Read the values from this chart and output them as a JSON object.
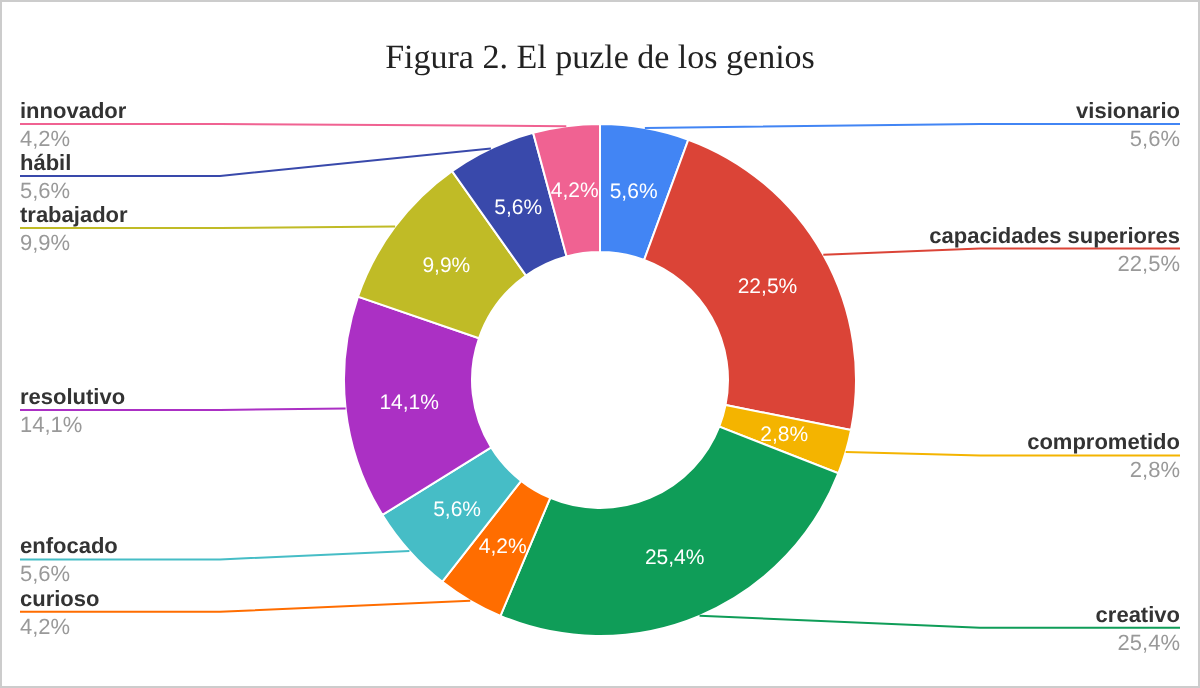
{
  "chart_data": {
    "type": "donut",
    "title": "Figura 2. El puzle de los genios",
    "categories": [
      "visionario",
      "capacidades superiores",
      "comprometido",
      "creativo",
      "curioso",
      "enfocado",
      "resolutivo",
      "trabajador",
      "hábil",
      "innovador"
    ],
    "values": [
      5.6,
      22.5,
      2.8,
      25.4,
      4.2,
      5.6,
      14.1,
      9.9,
      5.6,
      4.2
    ],
    "value_labels": [
      "5,6%",
      "22,5%",
      "2,8%",
      "25,4%",
      "4,2%",
      "5,6%",
      "14,1%",
      "9,9%",
      "5,6%",
      "4,2%"
    ],
    "colors": [
      "#4285f4",
      "#db4437",
      "#f4b400",
      "#0f9d58",
      "#ff6d00",
      "#46bdc6",
      "#ab30c4",
      "#c0bb26",
      "#3949ab",
      "#f06292"
    ],
    "legend": false
  }
}
